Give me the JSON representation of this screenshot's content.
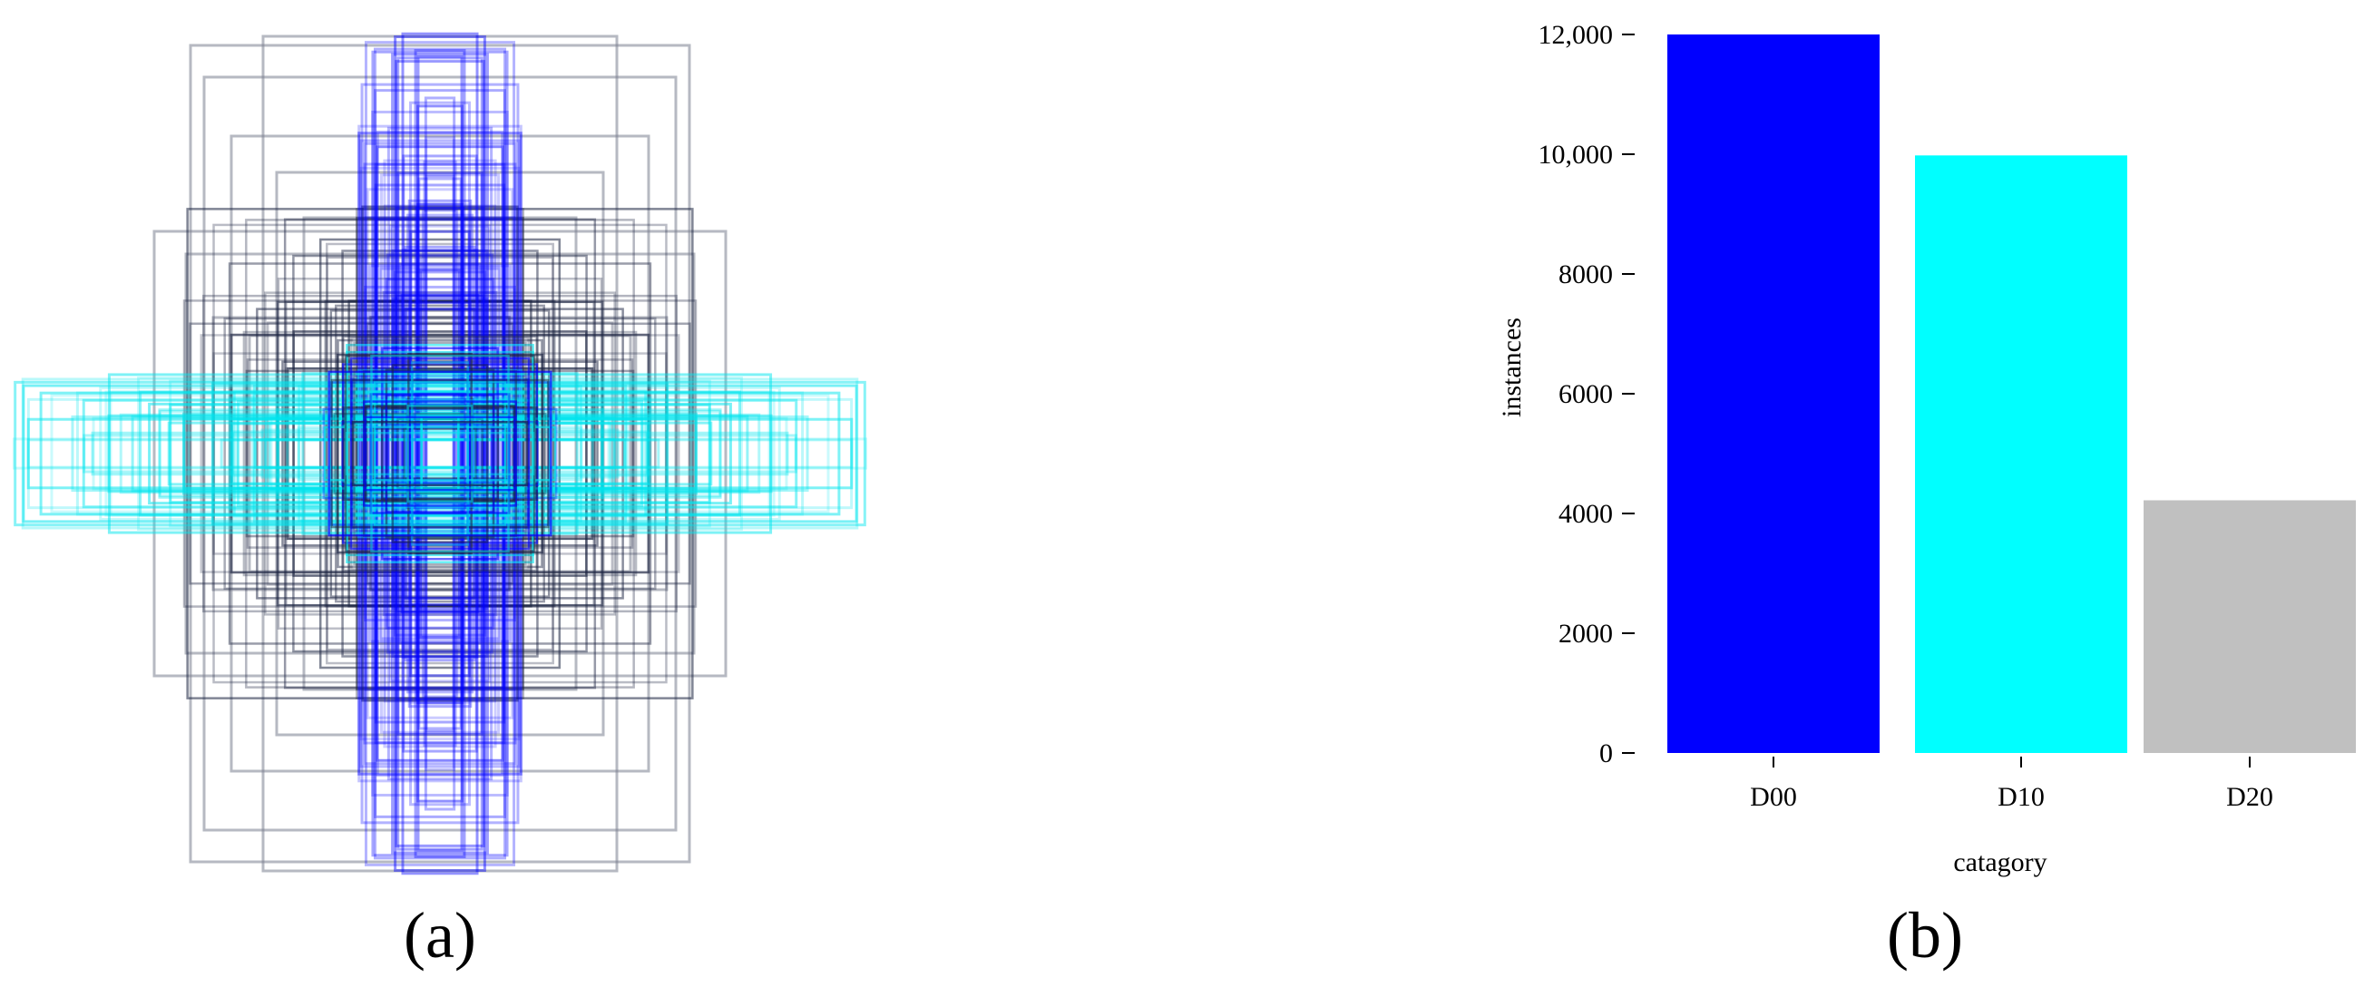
{
  "panels": {
    "a": {
      "label": "(a)"
    },
    "b": {
      "label": "(b)"
    }
  },
  "box_colors": {
    "blue": "#0000ff",
    "cyan": "#00e5ee",
    "dark": "#1a2240",
    "gray": "#7a8090"
  },
  "chart_data": {
    "type": "bar",
    "categories": [
      "D00",
      "D10",
      "D20"
    ],
    "values": [
      12000,
      9980,
      4220
    ],
    "colors": [
      "#0000ff",
      "#00ffff",
      "#c0c0c0"
    ],
    "xlabel": "catagory",
    "ylabel": "instances",
    "ylim": [
      0,
      12000
    ],
    "yticks": [
      0,
      2000,
      4000,
      6000,
      8000,
      10000,
      12000
    ],
    "ytick_labels": [
      "0",
      "2000",
      "4000",
      "6000",
      "8000",
      "10,000",
      "12,000"
    ],
    "grid": false
  }
}
